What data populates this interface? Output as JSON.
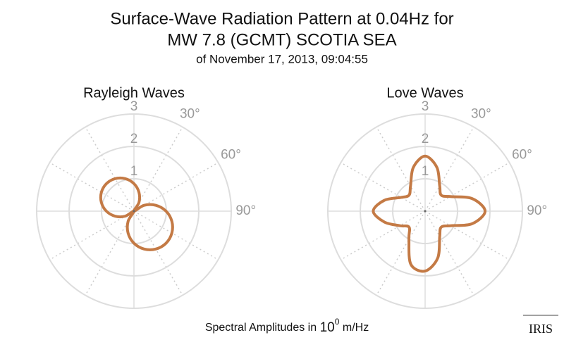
{
  "title": [
    "Surface-Wave Radiation Pattern at 0.04Hz for",
    "MW 7.8 (GCMT) SCOTIA SEA"
  ],
  "subtitle": "of November 17, 2013, 09:04:55",
  "footer": {
    "text": "Spectral Amplitudes in",
    "base": "10",
    "exponent": "0",
    "unit": "m/Hz"
  },
  "logo": "IRIS",
  "chart_data": [
    {
      "type": "polar",
      "title": "Rayleigh Waves",
      "color": "#c47a45",
      "theta": [
        0,
        15,
        30,
        45,
        60,
        75,
        90,
        105,
        120,
        135,
        150,
        165,
        180,
        195,
        210,
        225,
        240,
        255,
        270,
        285,
        300,
        315,
        330,
        345
      ],
      "values": [
        0.85,
        0.6,
        0.31,
        0,
        0.36,
        0.7,
        0.99,
        1.21,
        1.35,
        1.4,
        1.35,
        1.21,
        0.99,
        0.7,
        0.36,
        0,
        0.31,
        0.6,
        0.85,
        1.04,
        1.16,
        1.2,
        1.16,
        1.04
      ],
      "rlim": [
        0,
        3
      ],
      "rticks": [
        1,
        2,
        3
      ],
      "thetagrid": 30,
      "thetaticks": [
        {
          "value": 30,
          "label": "30°"
        },
        {
          "value": 60,
          "label": "60°"
        },
        {
          "value": 90,
          "label": "90°"
        }
      ]
    },
    {
      "type": "polar",
      "title": "Love Waves",
      "color": "#c47a45",
      "theta": [
        0,
        15,
        30,
        45,
        60,
        75,
        90,
        105,
        120,
        135,
        150,
        165,
        180,
        195,
        210,
        225,
        240,
        255,
        270,
        285,
        300,
        315,
        330,
        345
      ],
      "values": [
        1.7,
        1.4,
        0.9,
        0.7,
        0.9,
        1.5,
        1.85,
        1.5,
        0.9,
        0.7,
        0.9,
        1.5,
        1.85,
        1.7,
        1.0,
        0.7,
        0.9,
        1.3,
        1.6,
        1.3,
        0.85,
        0.7,
        0.9,
        1.4
      ],
      "rlim": [
        0,
        3
      ],
      "rticks": [
        1,
        2,
        3
      ],
      "thetagrid": 30,
      "thetaticks": [
        {
          "value": 30,
          "label": "30°"
        },
        {
          "value": 60,
          "label": "60°"
        },
        {
          "value": 90,
          "label": "90°"
        }
      ]
    }
  ]
}
